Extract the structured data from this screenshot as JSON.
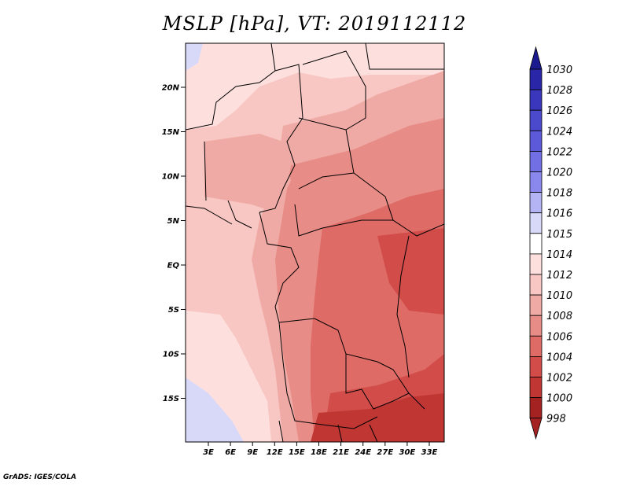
{
  "title": "MSLP [hPa], VT: 2019112112",
  "credit": "GrADS: IGES/COLA",
  "map": {
    "lat_labels": [
      "20N",
      "15N",
      "10N",
      "5N",
      "EQ",
      "5S",
      "10S",
      "15S"
    ],
    "lon_labels": [
      "3E",
      "6E",
      "9E",
      "12E",
      "15E",
      "18E",
      "21E",
      "24E",
      "27E",
      "30E",
      "33E"
    ]
  },
  "colorbar": {
    "labels": [
      "1030",
      "1028",
      "1026",
      "1024",
      "1022",
      "1020",
      "1018",
      "1016",
      "1015",
      "1014",
      "1012",
      "1010",
      "1008",
      "1006",
      "1004",
      "1002",
      "1000",
      "998"
    ],
    "colors": [
      "#1c1a8f",
      "#2a26a8",
      "#3a37bc",
      "#4b49cc",
      "#5d5ad9",
      "#716fe3",
      "#8a88ec",
      "#b4b3f3",
      "#d8d8f8",
      "#ffffff",
      "#fde0de",
      "#f8c7c3",
      "#f0aaa5",
      "#e78c86",
      "#de6b66",
      "#d24d4a",
      "#c03633",
      "#a52222"
    ]
  }
}
